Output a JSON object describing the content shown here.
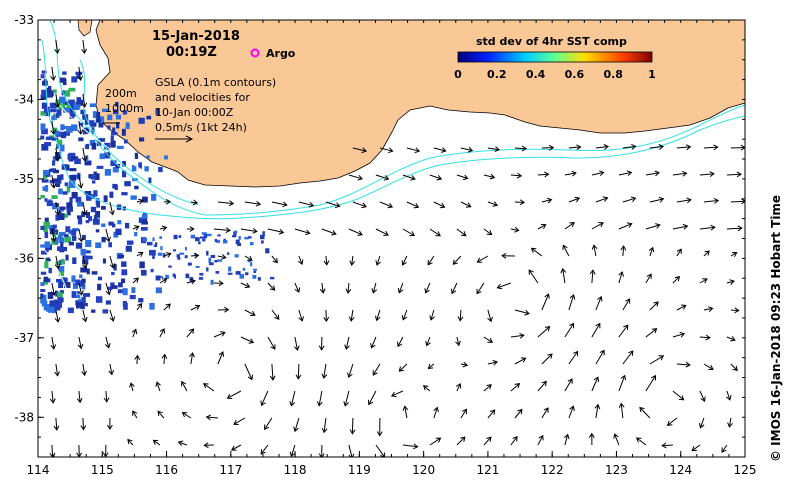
{
  "title": {
    "date": "15-Jan-2018",
    "time": "00:19Z"
  },
  "argo_label": "Argo",
  "depth_labels": [
    "200m",
    "1000m"
  ],
  "gsla_text": [
    "GSLA (0.1m contours)",
    "and velocities for",
    "10-Jan 00:00Z",
    "0.5m/s (1kt 24h)"
  ],
  "colorbar": {
    "title": "std dev of 4hr SST comp",
    "ticks": [
      "0",
      "0.2",
      "0.4",
      "0.6",
      "0.8",
      "1"
    ]
  },
  "credit": "© IMOS 16-Jan-2018 09:23 Hobart Time",
  "axes": {
    "x_ticks": [
      "114",
      "115",
      "116",
      "117",
      "118",
      "119",
      "120",
      "121",
      "122",
      "123",
      "124",
      "125"
    ],
    "y_ticks": [
      "-33",
      "-34",
      "-35",
      "-36",
      "-37",
      "-38"
    ],
    "lon_range": [
      114,
      125
    ],
    "lat_range": [
      -38.5,
      -33
    ]
  },
  "colors": {
    "land": "#f9c896",
    "ocean": "#ffffff",
    "contour_200m": "#33e0e6",
    "contour_1000m": "#33e0e6",
    "sst_dark": "#1d3ab0",
    "sst_mid": "#2b6fe0",
    "sst_light": "#2fb35a",
    "argo": "#ff00ff",
    "arrow": "#000000"
  }
}
